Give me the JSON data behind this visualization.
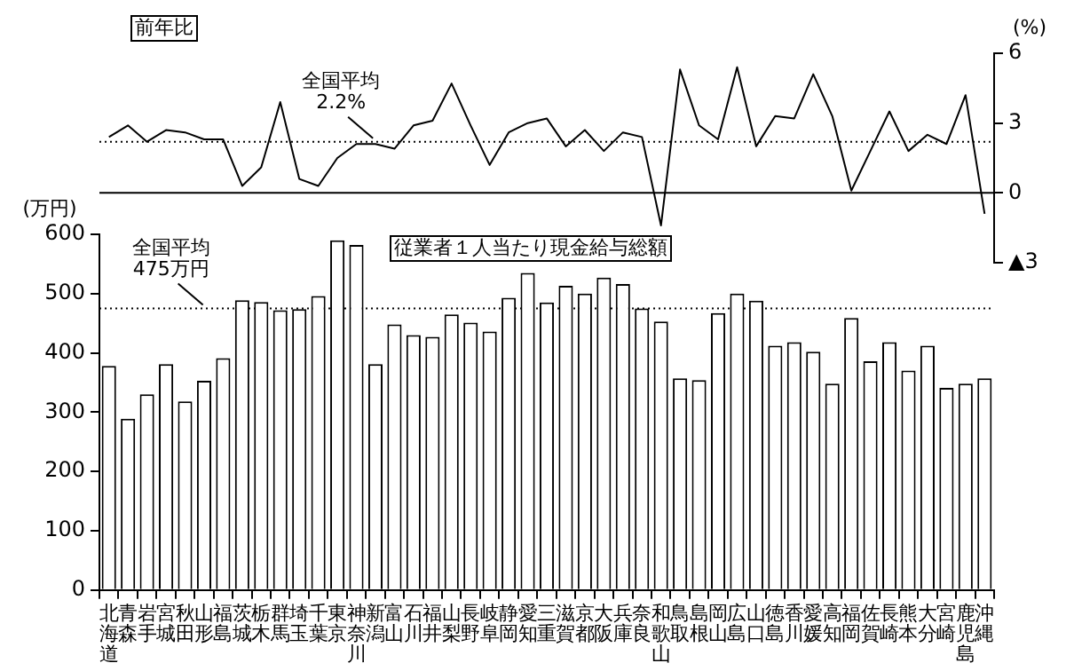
{
  "chart_data": [
    {
      "type": "line",
      "ylabel": "(%)",
      "annotations": [
        "前年比"
      ],
      "categories": [
        null,
        null,
        null,
        null,
        null,
        null,
        null,
        null,
        null,
        null,
        null,
        null,
        null,
        null,
        null,
        null,
        null,
        null,
        null,
        null,
        null,
        null,
        null,
        null,
        null,
        null,
        null,
        null,
        null,
        null,
        null,
        null,
        null,
        null,
        null,
        null,
        null,
        null,
        null,
        null,
        null,
        null,
        null,
        null,
        null,
        null,
        null
      ],
      "series": [
        {
          "color": "#000000",
          "values": [
            2.4,
            2.9,
            2.2,
            2.7,
            2.6,
            2.3,
            2.3,
            0.3,
            1.1,
            3.9,
            0.6,
            0.3,
            1.5,
            2.1,
            2.1,
            1.9,
            2.9,
            3.1,
            4.7,
            2.9,
            1.2,
            2.6,
            3.0,
            3.2,
            2.0,
            2.7,
            1.8,
            2.6,
            2.4,
            -1.4,
            5.3,
            2.9,
            2.3,
            5.4,
            2.0,
            3.3,
            3.2,
            5.1,
            3.3,
            0.1,
            1.8,
            3.5,
            1.8,
            2.5,
            2.1,
            4.2,
            -0.9
          ]
        }
      ],
      "ylim": [
        -3,
        6
      ],
      "yticks": [
        {
          "value": -3,
          "label": "▲3"
        },
        0,
        3,
        6
      ],
      "ref_lines": [
        {
          "axis": "y",
          "value": 2.2,
          "label": "全国平均\n2.2%",
          "line_style": "dotted"
        },
        {
          "axis": "y",
          "value": 0,
          "line_style": "solid"
        }
      ],
      "tick_labels": "y",
      "marker": "none",
      "line_style": "solid",
      "grid": false,
      "legend": false
    },
    {
      "type": "bar",
      "ylabel": "(万円)",
      "annotations": [
        "従業者１人当たり現金給与総額"
      ],
      "categories": [
        "北海道",
        "青森",
        "岩手",
        "宮城",
        "秋田",
        "山形",
        "福島",
        "茨城",
        "栃木",
        "群馬",
        "埼玉",
        "千葉",
        "東京",
        "神奈川",
        "新潟",
        "富山",
        "石川",
        "福井",
        "山梨",
        "長野",
        "岐阜",
        "静岡",
        "愛知",
        "三重",
        "滋賀",
        "京都",
        "大阪",
        "兵庫",
        "奈良",
        "和歌山",
        "鳥取",
        "島根",
        "岡山",
        "広島",
        "山口",
        "徳島",
        "香川",
        "愛媛",
        "高知",
        "福岡",
        "佐賀",
        "長崎",
        "熊本",
        "大分",
        "宮崎",
        "鹿児島",
        "沖縄"
      ],
      "series": [
        {
          "color": "#000000",
          "values": [
            378,
            289,
            330,
            381,
            318,
            353,
            391,
            489,
            486,
            472,
            474,
            496,
            590,
            582,
            381,
            448,
            430,
            427,
            465,
            451,
            436,
            493,
            535,
            485,
            513,
            500,
            527,
            516,
            475,
            453,
            357,
            354,
            467,
            500,
            488,
            412,
            418,
            402,
            348,
            459,
            386,
            418,
            370,
            412,
            341,
            348,
            357
          ]
        }
      ],
      "ylim": [
        0,
        600
      ],
      "yticks": [
        0,
        100,
        200,
        300,
        400,
        500,
        600
      ],
      "ref_lines": [
        {
          "axis": "y",
          "value": 475,
          "label": "全国平均\n475万円",
          "line_style": "dotted"
        }
      ],
      "grid": false,
      "legend": false
    }
  ]
}
